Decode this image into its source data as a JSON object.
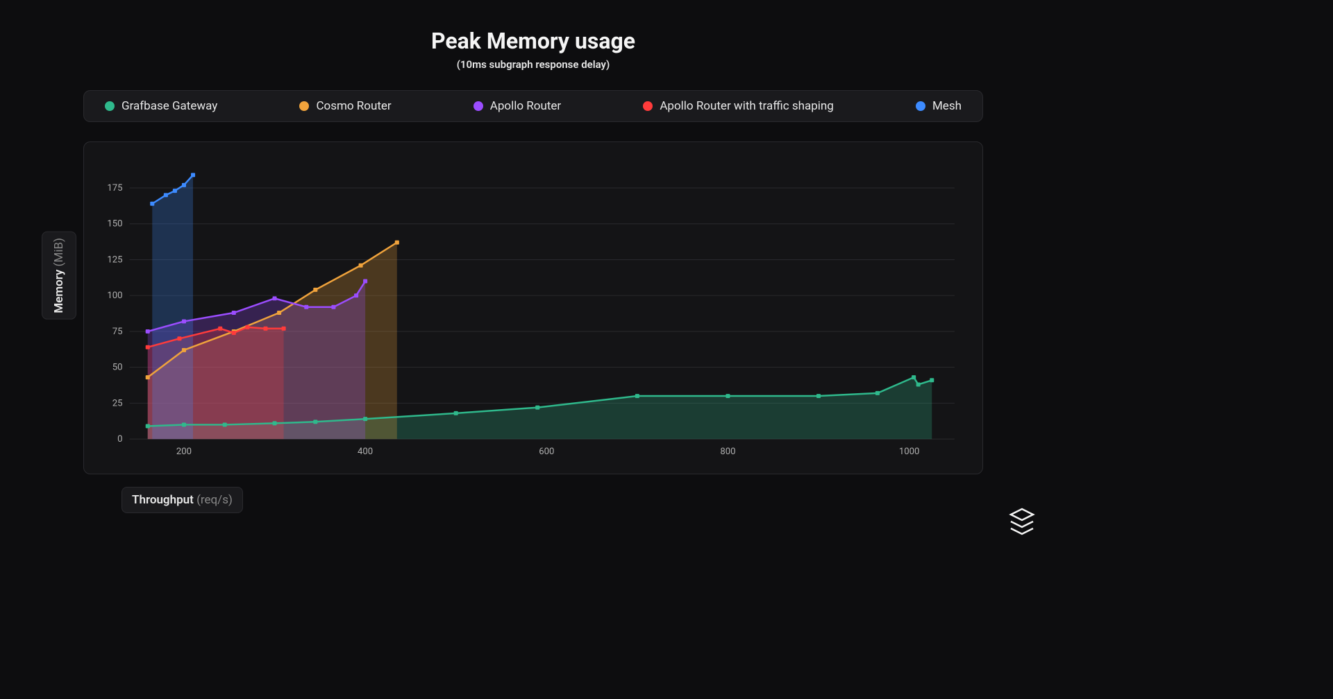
{
  "title": "Peak Memory usage",
  "subtitle": "(10ms subgraph response delay)",
  "y_axis": {
    "label": "Memory",
    "unit": "(MiB)"
  },
  "x_axis": {
    "label": "Throughput",
    "unit": "(req/s)"
  },
  "chart": {
    "type": "line-area",
    "background_color": "#141416",
    "panel_border": "#2a2a2e",
    "grid_color": "#2a2a2e",
    "xlim": [
      140,
      1050
    ],
    "ylim": [
      0,
      190
    ],
    "xticks": [
      200,
      400,
      600,
      800,
      1000
    ],
    "yticks": [
      0,
      25,
      50,
      75,
      100,
      125,
      150,
      175
    ],
    "marker_size": 6,
    "marker_shape": "square",
    "line_width": 2.5,
    "area_opacity": 0.25,
    "series": [
      {
        "name": "Grafbase Gateway",
        "color": "#2fb98c",
        "points": [
          [
            160,
            9
          ],
          [
            200,
            10
          ],
          [
            245,
            10
          ],
          [
            300,
            11
          ],
          [
            345,
            12
          ],
          [
            400,
            14
          ],
          [
            500,
            18
          ],
          [
            590,
            22
          ],
          [
            700,
            30
          ],
          [
            800,
            30
          ],
          [
            900,
            30
          ],
          [
            965,
            32
          ],
          [
            1005,
            43
          ],
          [
            1010,
            38
          ],
          [
            1025,
            41
          ]
        ]
      },
      {
        "name": "Cosmo Router",
        "color": "#f0a33c",
        "points": [
          [
            160,
            43
          ],
          [
            200,
            62
          ],
          [
            255,
            75
          ],
          [
            305,
            88
          ],
          [
            345,
            104
          ],
          [
            395,
            121
          ],
          [
            435,
            137
          ]
        ]
      },
      {
        "name": "Apollo Router",
        "color": "#9b4dff",
        "points": [
          [
            160,
            75
          ],
          [
            200,
            82
          ],
          [
            255,
            88
          ],
          [
            300,
            98
          ],
          [
            335,
            92
          ],
          [
            365,
            92
          ],
          [
            390,
            100
          ],
          [
            400,
            110
          ]
        ]
      },
      {
        "name": "Apollo Router with traffic shaping",
        "color": "#ff3b3b",
        "points": [
          [
            160,
            64
          ],
          [
            195,
            70
          ],
          [
            240,
            77
          ],
          [
            255,
            74
          ],
          [
            270,
            78
          ],
          [
            290,
            77
          ],
          [
            310,
            77
          ]
        ]
      },
      {
        "name": "Mesh",
        "color": "#3d8bff",
        "points": [
          [
            165,
            164
          ],
          [
            180,
            170
          ],
          [
            190,
            173
          ],
          [
            200,
            177
          ],
          [
            210,
            184
          ]
        ]
      }
    ]
  },
  "colors": {
    "page_bg": "#0d0d0f",
    "text": "#e8e8e8",
    "text_dim": "#888888"
  }
}
